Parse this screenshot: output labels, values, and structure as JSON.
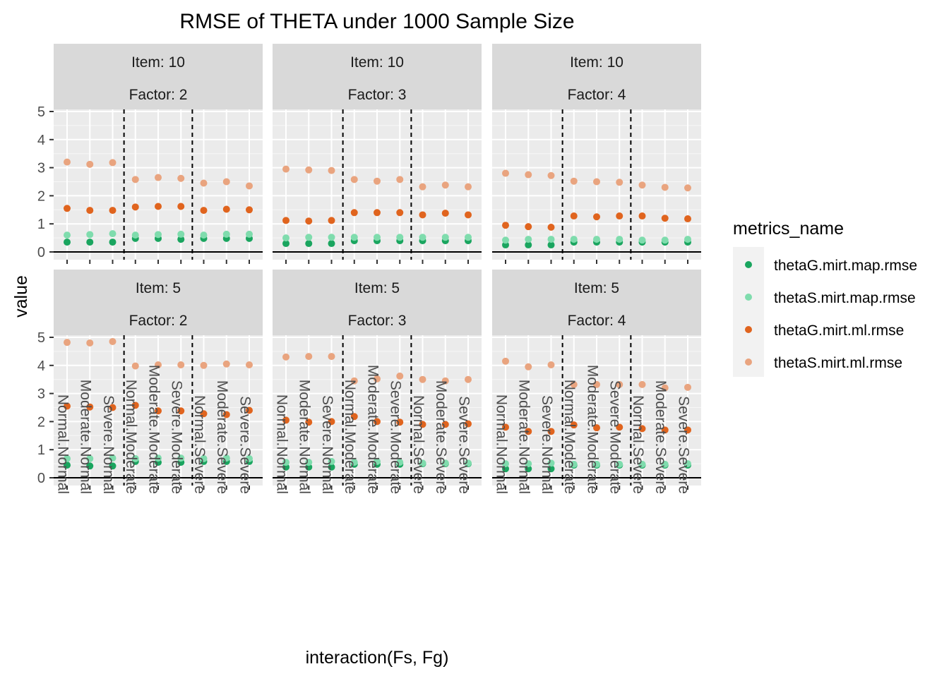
{
  "chart_data": {
    "type": "scatter",
    "title": "RMSE of THETA under 1000 Sample Size",
    "xlabel": "interaction(Fs, Fg)",
    "ylabel": "value",
    "ylim": [
      0,
      5
    ],
    "yticks": [
      "0",
      "1",
      "2",
      "3",
      "4",
      "5"
    ],
    "grid": true,
    "facet_layout": {
      "rows": 2,
      "cols": 3
    },
    "categories": [
      "Normal.Normal",
      "Moderate.Normal",
      "Severe.Normal",
      "Normal.Moderate",
      "Moderate.Moderate",
      "Severe.Moderate",
      "Normal.Severe",
      "Moderate.Severe",
      "Severe.Severe"
    ],
    "vlines_after_index": [
      2,
      5
    ],
    "legend": {
      "title": "metrics_name",
      "placement": "right",
      "entries": [
        {
          "name": "thetaG.mirt.map.rmse",
          "color": "#1aa55f"
        },
        {
          "name": "thetaS.mirt.map.rmse",
          "color": "#7fdcad"
        },
        {
          "name": "thetaG.mirt.ml.rmse",
          "color": "#e0641e"
        },
        {
          "name": "thetaS.mirt.ml.rmse",
          "color": "#e9a47f"
        }
      ]
    },
    "panels": [
      {
        "strip": [
          "Item: 10",
          "Factor: 2"
        ],
        "series": [
          {
            "name": "thetaG.mirt.map.rmse",
            "values": [
              0.35,
              0.35,
              0.35,
              0.48,
              0.48,
              0.45,
              0.48,
              0.48,
              0.48
            ]
          },
          {
            "name": "thetaS.mirt.map.rmse",
            "values": [
              0.6,
              0.62,
              0.65,
              0.6,
              0.62,
              0.63,
              0.6,
              0.63,
              0.63
            ]
          },
          {
            "name": "thetaG.mirt.ml.rmse",
            "values": [
              1.55,
              1.48,
              1.48,
              1.6,
              1.62,
              1.62,
              1.48,
              1.52,
              1.5
            ]
          },
          {
            "name": "thetaS.mirt.ml.rmse",
            "values": [
              3.2,
              3.12,
              3.18,
              2.58,
              2.65,
              2.62,
              2.45,
              2.5,
              2.35
            ]
          }
        ]
      },
      {
        "strip": [
          "Item: 10",
          "Factor: 3"
        ],
        "series": [
          {
            "name": "thetaG.mirt.map.rmse",
            "values": [
              0.3,
              0.3,
              0.3,
              0.4,
              0.4,
              0.4,
              0.4,
              0.4,
              0.4
            ]
          },
          {
            "name": "thetaS.mirt.map.rmse",
            "values": [
              0.5,
              0.52,
              0.52,
              0.52,
              0.52,
              0.52,
              0.52,
              0.52,
              0.52
            ]
          },
          {
            "name": "thetaG.mirt.ml.rmse",
            "values": [
              1.12,
              1.1,
              1.12,
              1.4,
              1.4,
              1.4,
              1.32,
              1.38,
              1.32
            ]
          },
          {
            "name": "thetaS.mirt.ml.rmse",
            "values": [
              2.95,
              2.92,
              2.9,
              2.58,
              2.52,
              2.58,
              2.32,
              2.38,
              2.32
            ]
          }
        ]
      },
      {
        "strip": [
          "Item: 10",
          "Factor: 4"
        ],
        "series": [
          {
            "name": "thetaG.mirt.map.rmse",
            "values": [
              0.25,
              0.25,
              0.25,
              0.35,
              0.35,
              0.35,
              0.35,
              0.35,
              0.35
            ]
          },
          {
            "name": "thetaS.mirt.map.rmse",
            "values": [
              0.42,
              0.45,
              0.45,
              0.45,
              0.45,
              0.45,
              0.42,
              0.42,
              0.45
            ]
          },
          {
            "name": "thetaG.mirt.ml.rmse",
            "values": [
              0.95,
              0.9,
              0.88,
              1.28,
              1.25,
              1.28,
              1.28,
              1.2,
              1.18
            ]
          },
          {
            "name": "thetaS.mirt.ml.rmse",
            "values": [
              2.8,
              2.75,
              2.72,
              2.52,
              2.5,
              2.48,
              2.38,
              2.3,
              2.28
            ]
          }
        ]
      },
      {
        "strip": [
          "Item: 5",
          "Factor: 2"
        ],
        "series": [
          {
            "name": "thetaG.mirt.map.rmse",
            "values": [
              0.45,
              0.42,
              0.42,
              0.58,
              0.55,
              0.55,
              0.58,
              0.58,
              0.58
            ]
          },
          {
            "name": "thetaS.mirt.map.rmse",
            "values": [
              0.68,
              0.68,
              0.7,
              0.68,
              0.7,
              0.7,
              0.68,
              0.7,
              0.68
            ]
          },
          {
            "name": "thetaG.mirt.ml.rmse",
            "values": [
              2.55,
              2.52,
              2.5,
              2.58,
              2.38,
              2.38,
              2.28,
              2.25,
              2.4
            ]
          },
          {
            "name": "thetaS.mirt.ml.rmse",
            "values": [
              4.82,
              4.8,
              4.85,
              3.98,
              4.02,
              4.02,
              4.0,
              4.05,
              4.02
            ]
          }
        ]
      },
      {
        "strip": [
          "Item: 5",
          "Factor: 3"
        ],
        "series": [
          {
            "name": "thetaG.mirt.map.rmse",
            "values": [
              0.38,
              0.38,
              0.38,
              0.48,
              0.48,
              0.48,
              0.5,
              0.5,
              0.5
            ]
          },
          {
            "name": "thetaS.mirt.map.rmse",
            "values": [
              0.55,
              0.55,
              0.58,
              0.55,
              0.58,
              0.55,
              0.52,
              0.52,
              0.52
            ]
          },
          {
            "name": "thetaG.mirt.ml.rmse",
            "values": [
              2.05,
              1.98,
              2.0,
              2.18,
              2.0,
              1.98,
              1.9,
              1.9,
              1.92
            ]
          },
          {
            "name": "thetaS.mirt.ml.rmse",
            "values": [
              4.3,
              4.32,
              4.32,
              3.45,
              3.52,
              3.62,
              3.5,
              3.45,
              3.5
            ]
          }
        ]
      },
      {
        "strip": [
          "Item: 5",
          "Factor: 4"
        ],
        "series": [
          {
            "name": "thetaG.mirt.map.rmse",
            "values": [
              0.32,
              0.32,
              0.32,
              0.45,
              0.45,
              0.45,
              0.45,
              0.45,
              0.45
            ]
          },
          {
            "name": "thetaS.mirt.map.rmse",
            "values": [
              0.5,
              0.5,
              0.52,
              0.48,
              0.48,
              0.48,
              0.48,
              0.48,
              0.5
            ]
          },
          {
            "name": "thetaG.mirt.ml.rmse",
            "values": [
              1.8,
              1.65,
              1.65,
              1.88,
              1.78,
              1.8,
              1.75,
              1.7,
              1.7
            ]
          },
          {
            "name": "thetaS.mirt.ml.rmse",
            "values": [
              4.15,
              3.95,
              4.02,
              3.32,
              3.32,
              3.32,
              3.32,
              3.2,
              3.22
            ]
          }
        ]
      }
    ]
  }
}
